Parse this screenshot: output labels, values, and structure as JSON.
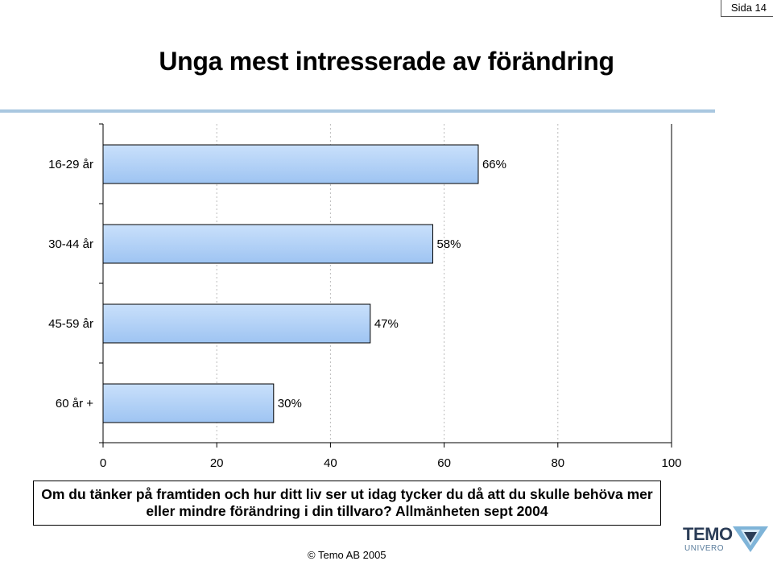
{
  "page_label": "Sida 14",
  "title": "Unga mest intresserade av förändring",
  "question": "Om du tänker på framtiden och hur ditt liv ser ut idag tycker du då att du skulle behöva mer eller mindre förändring i din tillvaro? Allmänheten sept 2004",
  "copyright": "Temo AB 2005",
  "logo": {
    "word": "TEMO",
    "sub": "UNIVERO"
  },
  "colors": {
    "bar_fill": "#9ec4f2",
    "bar_stroke": "#000000",
    "rule": "#a9c7e0",
    "logo_dark": "#2b3d57",
    "logo_light": "#7fb4d8"
  },
  "chart_data": {
    "type": "bar",
    "orientation": "horizontal",
    "categories": [
      "16-29 år",
      "30-44 år",
      "45-59 år",
      "60 år +"
    ],
    "values": [
      66,
      58,
      47,
      30
    ],
    "data_labels": [
      "66%",
      "58%",
      "47%",
      "30%"
    ],
    "xlim": [
      0,
      100
    ],
    "x_ticks": [
      "0",
      "20",
      "40",
      "60",
      "80",
      "100"
    ],
    "title": "",
    "xlabel": "",
    "ylabel": "",
    "grid": true,
    "legend": "none"
  }
}
